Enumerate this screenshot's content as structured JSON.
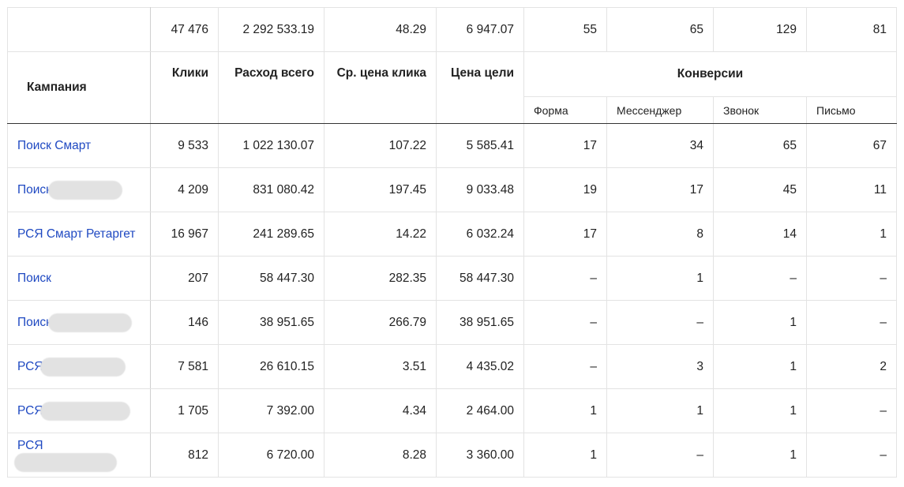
{
  "totals": [
    "",
    "47 476",
    "2 292 533.19",
    "48.29",
    "6 947.07",
    "55",
    "65",
    "129",
    "81"
  ],
  "headers": {
    "campaign": "Кампания",
    "clicks": "Клики",
    "spend": "Расход всего",
    "cpc": "Ср. цена клика",
    "goal_price": "Цена цели",
    "conversions": "Конверсии",
    "conv_cols": [
      "Форма",
      "Мессенджер",
      "Звонок",
      "Письмо"
    ]
  },
  "rows": [
    {
      "name": "Поиск Смарт",
      "blur": 0,
      "clicks": "9 533",
      "spend": "1 022 130.07",
      "cpc": "107.22",
      "goal": "5 585.41",
      "c1": "17",
      "c2": "34",
      "c3": "65",
      "c4": "67"
    },
    {
      "name": "Поиск",
      "blur": 1,
      "clicks": "4 209",
      "spend": "831 080.42",
      "cpc": "197.45",
      "goal": "9 033.48",
      "c1": "19",
      "c2": "17",
      "c3": "45",
      "c4": "11"
    },
    {
      "name": "РСЯ Смарт Ретаргет",
      "blur": 0,
      "clicks": "16 967",
      "spend": "241 289.65",
      "cpc": "14.22",
      "goal": "6 032.24",
      "c1": "17",
      "c2": "8",
      "c3": "14",
      "c4": "1"
    },
    {
      "name": "Поиск",
      "blur": 0,
      "clicks": "207",
      "spend": "58 447.30",
      "cpc": "282.35",
      "goal": "58 447.30",
      "c1": "–",
      "c2": "1",
      "c3": "–",
      "c4": "–"
    },
    {
      "name": "Поиск",
      "blur": 1,
      "clicks": "146",
      "spend": "38 951.65",
      "cpc": "266.79",
      "goal": "38 951.65",
      "c1": "–",
      "c2": "–",
      "c3": "1",
      "c4": "–"
    },
    {
      "name": "РСЯ",
      "blur": 1,
      "clicks": "7 581",
      "spend": "26 610.15",
      "cpc": "3.51",
      "goal": "4 435.02",
      "c1": "–",
      "c2": "3",
      "c3": "1",
      "c4": "2"
    },
    {
      "name": "РСЯ",
      "blur": 1,
      "clicks": "1 705",
      "spend": "7 392.00",
      "cpc": "4.34",
      "goal": "2 464.00",
      "c1": "1",
      "c2": "1",
      "c3": "1",
      "c4": "–"
    },
    {
      "name": "РСЯ",
      "blur": 1,
      "clicks": "812",
      "spend": "6 720.00",
      "cpc": "8.28",
      "goal": "3 360.00",
      "c1": "1",
      "c2": "–",
      "c3": "1",
      "c4": "–"
    }
  ],
  "colors": {
    "link": "#1f49c2",
    "border": "#e3e3e3",
    "redaction": "#e2e2e2"
  }
}
